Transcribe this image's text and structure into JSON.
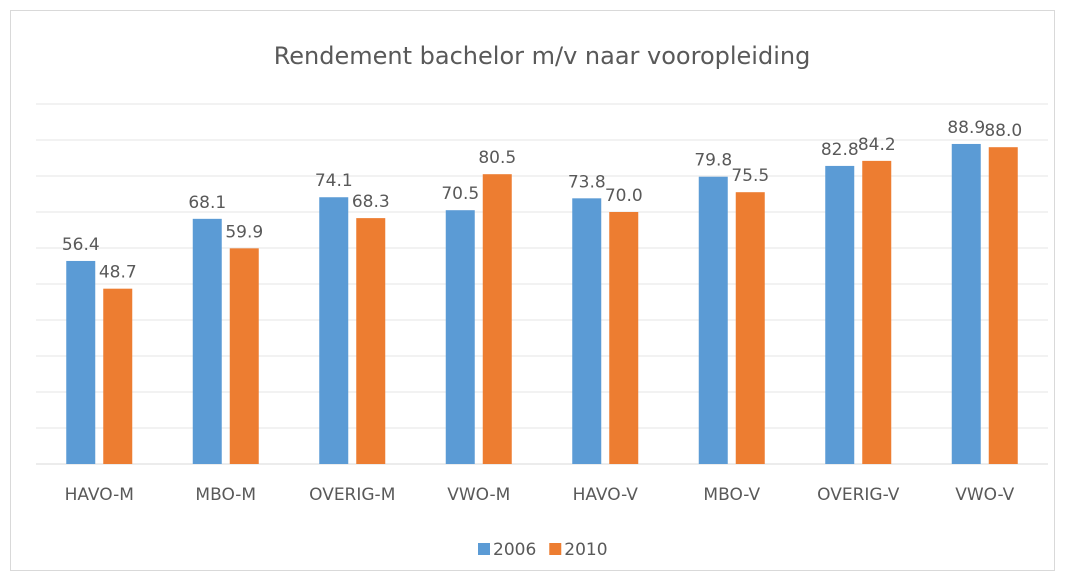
{
  "chart_data": {
    "type": "bar",
    "title": "Rendement bachelor m/v naar vooropleiding",
    "categories": [
      "HAVO-M",
      "MBO-M",
      "OVERIG-M",
      "VWO-M",
      "HAVO-V",
      "MBO-V",
      "OVERIG-V",
      "VWO-V"
    ],
    "series": [
      {
        "name": "2006",
        "color": "#5b9bd5",
        "values": [
          56.4,
          68.1,
          74.1,
          70.5,
          73.8,
          79.8,
          82.8,
          88.9
        ],
        "value_labels": [
          "56.4",
          "68.1",
          "74.1",
          "70.5",
          "73.8",
          "79.8",
          "82.8",
          "88.9"
        ]
      },
      {
        "name": "2010",
        "color": "#ed7d31",
        "values": [
          48.7,
          59.9,
          68.3,
          80.5,
          70.0,
          75.5,
          84.2,
          88.0
        ],
        "value_labels": [
          "48.7",
          "59.9",
          "68.3",
          "80.5",
          "70.0",
          "75.5",
          "84.2",
          "88.0"
        ]
      }
    ],
    "ylim": [
      0,
      100
    ],
    "yticks": [
      0,
      10,
      20,
      30,
      40,
      50,
      60,
      70,
      80,
      90,
      100
    ],
    "grid": true,
    "legend": "bottom"
  }
}
